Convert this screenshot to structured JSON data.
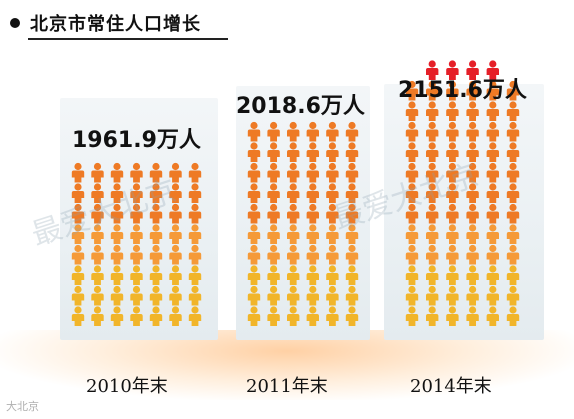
{
  "header": {
    "title": "北京市常住人口增长"
  },
  "colors": {
    "person_orange": "#ee7a25",
    "person_orange_light": "#f59a38",
    "person_yellow": "#f1b52a",
    "person_red": "#e51f28"
  },
  "watermark": {
    "text": "最爱大北京"
  },
  "footer": {
    "logo_text": "大北京"
  },
  "chart_data": {
    "type": "bar",
    "title": "北京市常住人口增长",
    "categories": [
      "2010年末",
      "2011年末",
      "2014年末"
    ],
    "values": [
      1961.9,
      2018.6,
      2151.6
    ],
    "value_labels": [
      "1961.9万人",
      "2018.6万人",
      "2151.6万人"
    ],
    "unit": "万人"
  }
}
